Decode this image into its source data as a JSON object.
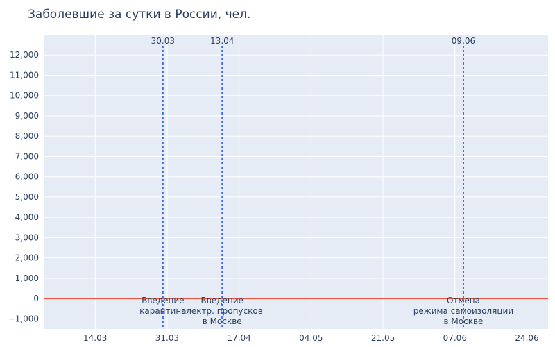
{
  "chart_data": {
    "type": "line",
    "title": "Заболевшие за сутки в России, чел.",
    "xlabel": "",
    "ylabel": "",
    "x_range": [
      "2020-03-02",
      "2020-06-29"
    ],
    "ylim": [
      -1500,
      13000
    ],
    "y_ticks": [
      -1000,
      0,
      1000,
      2000,
      3000,
      4000,
      5000,
      6000,
      7000,
      8000,
      9000,
      10000,
      11000,
      12000
    ],
    "y_tick_labels": [
      "−1,000",
      "0",
      "1,000",
      "2,000",
      "3,000",
      "4,000",
      "5,000",
      "6,000",
      "7,000",
      "8,000",
      "9,000",
      "10,000",
      "11,000",
      "12,000"
    ],
    "x_ticks": [
      "2020-03-14",
      "2020-03-31",
      "2020-04-17",
      "2020-05-04",
      "2020-05-21",
      "2020-06-07",
      "2020-06-24"
    ],
    "x_tick_labels": [
      "14.03",
      "31.03",
      "17.04",
      "04.05",
      "21.05",
      "07.06",
      "24.06"
    ],
    "grid": true,
    "colors": {
      "line": "#EF553B",
      "plot_bg": "#E5ECF6",
      "grid": "#ffffff",
      "marker": "#4169E1",
      "text": "#2a3f5f"
    },
    "series": [
      {
        "x": [
          "2020-03-02",
          "2020-03-03",
          "2020-03-04",
          "2020-03-05",
          "2020-03-06",
          "2020-03-07",
          "2020-03-08",
          "2020-03-09",
          "2020-03-10",
          "2020-03-11",
          "2020-03-12",
          "2020-03-13",
          "2020-03-14",
          "2020-03-15",
          "2020-03-16",
          "2020-03-17",
          "2020-03-18",
          "2020-03-19",
          "2020-03-20",
          "2020-03-21",
          "2020-03-22",
          "2020-03-23",
          "2020-03-24",
          "2020-03-25",
          "2020-03-26",
          "2020-03-27",
          "2020-03-28",
          "2020-03-29",
          "2020-03-30",
          "2020-03-31",
          "2020-04-01",
          "2020-04-02",
          "2020-04-03",
          "2020-04-04",
          "2020-04-05",
          "2020-04-06",
          "2020-04-07",
          "2020-04-08",
          "2020-04-09",
          "2020-04-10",
          "2020-04-11",
          "2020-04-12",
          "2020-04-13",
          "2020-04-14",
          "2020-04-15",
          "2020-04-16",
          "2020-04-17",
          "2020-04-18",
          "2020-04-19",
          "2020-04-20",
          "2020-04-21",
          "2020-04-22",
          "2020-04-23",
          "2020-04-24",
          "2020-04-25",
          "2020-04-26",
          "2020-04-27",
          "2020-04-28",
          "2020-04-29",
          "2020-04-30",
          "2020-05-01",
          "2020-05-02",
          "2020-05-03",
          "2020-05-04",
          "2020-05-05",
          "2020-05-06",
          "2020-05-07",
          "2020-05-08",
          "2020-05-09",
          "2020-05-10",
          "2020-05-11",
          "2020-05-12",
          "2020-05-13",
          "2020-05-14",
          "2020-05-15",
          "2020-05-16",
          "2020-05-17",
          "2020-05-18",
          "2020-05-19",
          "2020-05-20",
          "2020-05-21",
          "2020-05-22",
          "2020-05-23",
          "2020-05-24",
          "2020-05-25",
          "2020-05-26",
          "2020-05-27",
          "2020-05-28",
          "2020-05-29",
          "2020-05-30",
          "2020-05-31",
          "2020-06-01",
          "2020-06-02",
          "2020-06-03",
          "2020-06-04",
          "2020-06-05",
          "2020-06-06",
          "2020-06-07",
          "2020-06-08",
          "2020-06-09",
          "2020-06-10",
          "2020-06-11",
          "2020-06-12",
          "2020-06-13",
          "2020-06-14",
          "2020-06-15",
          "2020-06-16",
          "2020-06-17",
          "2020-06-18",
          "2020-06-19",
          "2020-06-20",
          "2020-06-21",
          "2020-06-22",
          "2020-06-23",
          "2020-06-24",
          "2020-06-25",
          "2020-06-26",
          "2020-06-27",
          "2020-06-28",
          "2020-06-29"
        ],
        "y": [
          0,
          0,
          0,
          0,
          0,
          0,
          0,
          0,
          0,
          0,
          0,
          0,
          0,
          0,
          0,
          0,
          0,
          0,
          0,
          0,
          0,
          0,
          0,
          0,
          0,
          0,
          0,
          0,
          0,
          0,
          0,
          0,
          0,
          0,
          0,
          0,
          0,
          0,
          0,
          0,
          0,
          0,
          0,
          0,
          0,
          0,
          0,
          0,
          0,
          0,
          0,
          0,
          0,
          0,
          0,
          0,
          0,
          0,
          0,
          0,
          0,
          0,
          0,
          0,
          0,
          0,
          0,
          0,
          0,
          0,
          0,
          0,
          0,
          0,
          0,
          0,
          0,
          0,
          0,
          0,
          0,
          0,
          0,
          0,
          0,
          0,
          0,
          0,
          0,
          0,
          0,
          0,
          0,
          0,
          0,
          0,
          0,
          0,
          0,
          0,
          0,
          0,
          0,
          0,
          0,
          0,
          0,
          0,
          0,
          0,
          0,
          0,
          0,
          0,
          0,
          0,
          0,
          0,
          0,
          0
        ]
      }
    ],
    "annotations": [
      {
        "x": "2020-03-30",
        "top_label": "30.03",
        "lines": [
          "Введение",
          "карантина"
        ]
      },
      {
        "x": "2020-04-13",
        "top_label": "13.04",
        "lines": [
          "Введение",
          "электр. пропусков",
          "в Москве"
        ]
      },
      {
        "x": "2020-06-09",
        "top_label": "09.06",
        "lines": [
          "Отмена",
          "режима самоизоляции",
          "в Москве"
        ]
      }
    ]
  }
}
